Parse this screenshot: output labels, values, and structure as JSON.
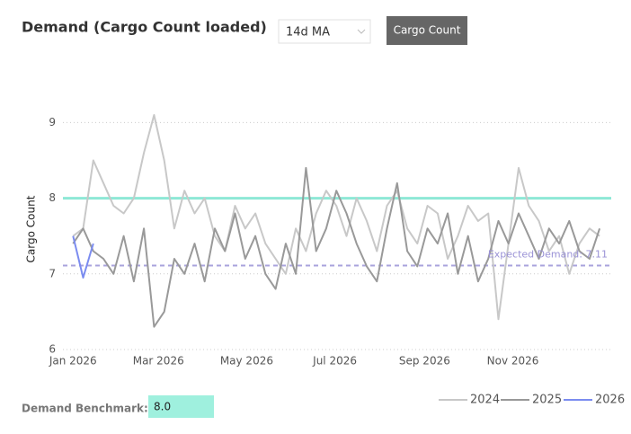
{
  "controls": {
    "ma_select": "14d MA",
    "metric_button": "Cargo Count",
    "benchmark_label": "Demand Benchmark:"
  },
  "chart_data": {
    "type": "line",
    "title": "Demand (Cargo Count loaded)",
    "y_label": "Cargo Count",
    "x": [
      0,
      7,
      14,
      21,
      28,
      35,
      42,
      49,
      56,
      63,
      70,
      77,
      84,
      91,
      98,
      105,
      112,
      119,
      126,
      133,
      140,
      147,
      154,
      161,
      168,
      175,
      182,
      189,
      196,
      203,
      210,
      217,
      224,
      231,
      238,
      245,
      252,
      259,
      266,
      273,
      280,
      287,
      294,
      301,
      308,
      315,
      322,
      329,
      336,
      343,
      350,
      357,
      364
    ],
    "xlim": [
      -7,
      372
    ],
    "xticks": [
      {
        "value": 0,
        "label": "Jan 2026"
      },
      {
        "value": 59,
        "label": "Mar 2026"
      },
      {
        "value": 120,
        "label": "May 2026"
      },
      {
        "value": 181,
        "label": "Jul 2026"
      },
      {
        "value": 243,
        "label": "Sep 2026"
      },
      {
        "value": 304,
        "label": "Nov 2026"
      }
    ],
    "ylim": [
      6,
      9.1
    ],
    "yticks": [
      6,
      7,
      8,
      9
    ],
    "grid": true,
    "legend": "bottom-right",
    "series": [
      {
        "name": "2024",
        "color": "#c8c8c8",
        "values": [
          7.5,
          7.6,
          8.5,
          8.2,
          7.9,
          7.8,
          8.0,
          8.6,
          9.1,
          8.5,
          7.6,
          8.1,
          7.8,
          8.0,
          7.5,
          7.3,
          7.9,
          7.6,
          7.8,
          7.4,
          7.2,
          7.0,
          7.6,
          7.3,
          7.8,
          8.1,
          7.9,
          7.5,
          8.0,
          7.7,
          7.3,
          7.9,
          8.1,
          7.6,
          7.4,
          7.9,
          7.8,
          7.2,
          7.5,
          7.9,
          7.7,
          7.8,
          6.4,
          7.4,
          8.4,
          7.9,
          7.7,
          7.3,
          7.5,
          7.0,
          7.4,
          7.6,
          7.5
        ]
      },
      {
        "name": "2025",
        "color": "#999999",
        "values": [
          7.4,
          7.6,
          7.3,
          7.2,
          7.0,
          7.5,
          6.9,
          7.6,
          6.3,
          6.5,
          7.2,
          7.0,
          7.4,
          6.9,
          7.6,
          7.3,
          7.8,
          7.2,
          7.5,
          7.0,
          6.8,
          7.4,
          7.0,
          8.4,
          7.3,
          7.6,
          8.1,
          7.8,
          7.4,
          7.1,
          6.9,
          7.6,
          8.2,
          7.3,
          7.1,
          7.6,
          7.4,
          7.8,
          7.0,
          7.5,
          6.9,
          7.2,
          7.7,
          7.4,
          7.8,
          7.5,
          7.2,
          7.6,
          7.4,
          7.7,
          7.3,
          7.2,
          7.6
        ]
      },
      {
        "name": "2026",
        "color": "#7b8cf0",
        "values": [
          7.5,
          6.95,
          7.4,
          null,
          null,
          null,
          null,
          null,
          null,
          null,
          null,
          null,
          null,
          null,
          null,
          null,
          null,
          null,
          null,
          null,
          null,
          null,
          null,
          null,
          null,
          null,
          null,
          null,
          null,
          null,
          null,
          null,
          null,
          null,
          null,
          null,
          null,
          null,
          null,
          null,
          null,
          null,
          null,
          null,
          null,
          null,
          null,
          null,
          null,
          null,
          null,
          null,
          null
        ]
      }
    ],
    "reference_lines": [
      {
        "value": 8,
        "value_label": "8.0",
        "color": "#8ee8d6"
      },
      {
        "value": 7.11,
        "label": "Expected Demand: 7.11",
        "color": "#a9a3dc",
        "dashed": true
      }
    ]
  }
}
